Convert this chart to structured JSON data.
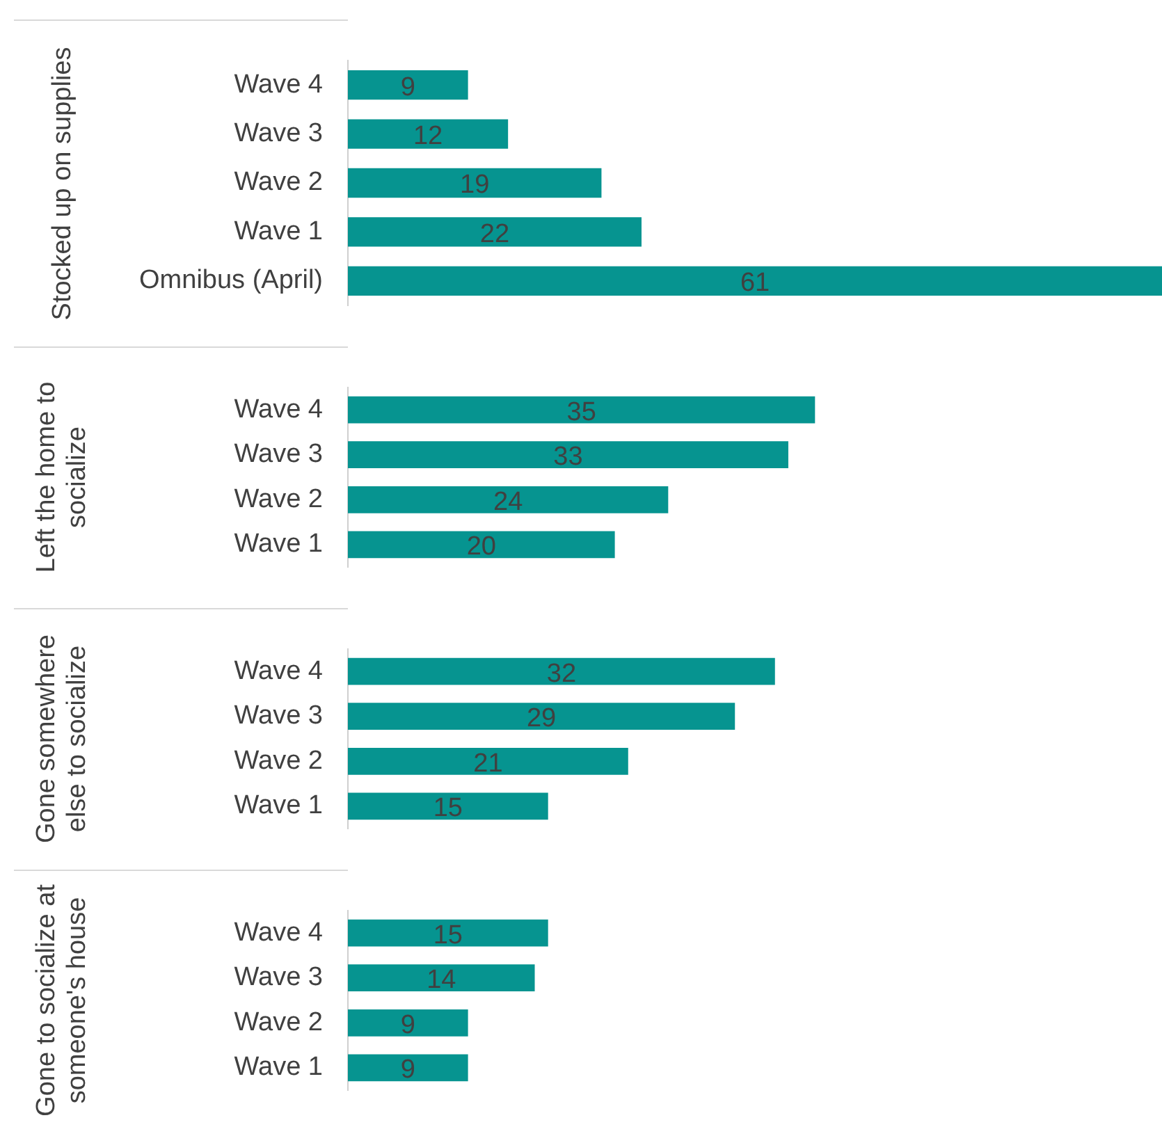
{
  "chart_data": [
    {
      "type": "bar",
      "orientation": "horizontal",
      "title": "Stocked up on supplies",
      "categories": [
        "Wave 4",
        "Wave 3",
        "Wave 2",
        "Wave 1",
        "Omnibus (April)"
      ],
      "values": [
        9,
        12,
        19,
        22,
        61
      ],
      "color": "#069490",
      "data_labels": true
    },
    {
      "type": "bar",
      "orientation": "horizontal",
      "title": "Left the home to socialize",
      "categories": [
        "Wave 4",
        "Wave 3",
        "Wave 2",
        "Wave 1"
      ],
      "values": [
        35,
        33,
        24,
        20
      ],
      "color": "#069490",
      "data_labels": true
    },
    {
      "type": "bar",
      "orientation": "horizontal",
      "title": "Gone somewhere else to socialize",
      "categories": [
        "Wave 4",
        "Wave 3",
        "Wave 2",
        "Wave 1"
      ],
      "values": [
        32,
        29,
        21,
        15
      ],
      "color": "#069490",
      "data_labels": true
    },
    {
      "type": "bar",
      "orientation": "horizontal",
      "title": "Gone to socialize at someone's house",
      "categories": [
        "Wave 4",
        "Wave 3",
        "Wave 2",
        "Wave 1"
      ],
      "values": [
        15,
        14,
        9,
        9
      ],
      "color": "#069490",
      "data_labels": true
    }
  ]
}
